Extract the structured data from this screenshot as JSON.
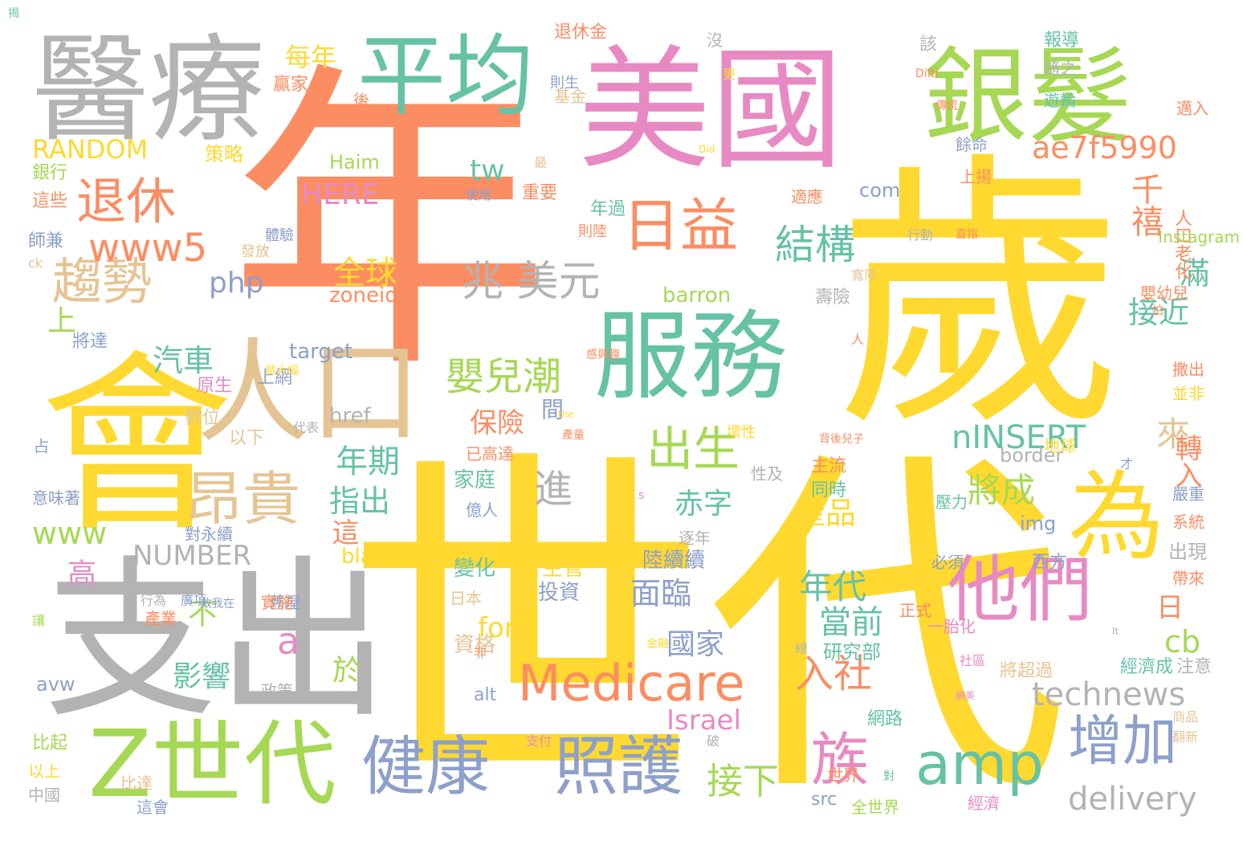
{
  "palette": {
    "orange": "#fc8d62",
    "yellow": "#ffd92f",
    "gray": "#b3b3b3",
    "teal": "#66c2a5",
    "pink": "#e78ac3",
    "green": "#a6d854",
    "blue": "#8da0cb",
    "tan": "#e5c494"
  },
  "words": [
    {
      "text": "年",
      "color": "orange"
    },
    {
      "text": "世代",
      "color": "yellow"
    },
    {
      "text": "歲",
      "color": "yellow"
    },
    {
      "text": "美國",
      "color": "pink"
    },
    {
      "text": "服務",
      "color": "teal"
    },
    {
      "text": "會",
      "color": "yellow"
    },
    {
      "text": "支出",
      "color": "gray"
    },
    {
      "text": "醫療",
      "color": "gray"
    },
    {
      "text": "平均",
      "color": "teal"
    },
    {
      "text": "銀髮",
      "color": "green"
    },
    {
      "text": "人口",
      "color": "tan"
    },
    {
      "text": "Z世代",
      "color": "green"
    },
    {
      "text": "健康",
      "color": "blue"
    },
    {
      "text": "照護",
      "color": "blue"
    },
    {
      "text": "他們",
      "color": "pink"
    },
    {
      "text": "為",
      "color": "yellow"
    },
    {
      "text": "Medicare",
      "color": "orange"
    },
    {
      "text": "amp",
      "color": "teal"
    },
    {
      "text": "增加",
      "color": "blue"
    },
    {
      "text": "退休",
      "color": "orange"
    },
    {
      "text": "趨勢",
      "color": "tan"
    },
    {
      "text": "昂貴",
      "color": "tan"
    },
    {
      "text": "日益",
      "color": "orange"
    },
    {
      "text": "族",
      "color": "pink"
    },
    {
      "text": "出生",
      "color": "green"
    },
    {
      "text": "www5",
      "color": "orange"
    },
    {
      "text": "兆 美元",
      "color": "gray"
    },
    {
      "text": "結構",
      "color": "teal"
    },
    {
      "text": "嬰兒潮",
      "color": "green"
    },
    {
      "text": "ae7f5990",
      "color": "orange"
    },
    {
      "text": "technews",
      "color": "gray"
    },
    {
      "text": "nINSERT",
      "color": "teal"
    },
    {
      "text": "入社",
      "color": "orange"
    },
    {
      "text": "接下",
      "color": "green"
    },
    {
      "text": "delivery",
      "color": "gray"
    },
    {
      "text": "RANDOM",
      "color": "yellow"
    },
    {
      "text": "NUMBER",
      "color": "gray"
    },
    {
      "text": "www",
      "color": "green"
    },
    {
      "text": "php",
      "color": "blue"
    },
    {
      "text": "tw",
      "color": "teal"
    },
    {
      "text": "HERE",
      "color": "pink"
    },
    {
      "text": "千禧",
      "color": "orange"
    },
    {
      "text": "全球",
      "color": "yellow"
    },
    {
      "text": "每年",
      "color": "yellow"
    },
    {
      "text": "將成",
      "color": "green"
    },
    {
      "text": "年代",
      "color": "teal"
    },
    {
      "text": "面臨",
      "color": "blue"
    },
    {
      "text": "國家",
      "color": "blue"
    },
    {
      "text": "當前",
      "color": "teal"
    },
    {
      "text": "產品",
      "color": "yellow"
    },
    {
      "text": "接近",
      "color": "teal"
    },
    {
      "text": "滿",
      "color": "teal"
    },
    {
      "text": "來",
      "color": "tan"
    },
    {
      "text": "轉入",
      "color": "orange"
    },
    {
      "text": "進",
      "color": "gray"
    },
    {
      "text": "赤字",
      "color": "teal"
    },
    {
      "text": "指出",
      "color": "teal"
    },
    {
      "text": "年期",
      "color": "teal"
    },
    {
      "text": "保險",
      "color": "orange"
    },
    {
      "text": "汽車",
      "color": "teal"
    },
    {
      "text": "高",
      "color": "pink"
    },
    {
      "text": "上",
      "color": "green"
    },
    {
      "text": "a",
      "color": "pink"
    },
    {
      "text": "於",
      "color": "green"
    },
    {
      "text": "影響",
      "color": "teal"
    },
    {
      "text": "不",
      "color": "green"
    },
    {
      "text": "這",
      "color": "orange"
    },
    {
      "text": "for",
      "color": "yellow"
    },
    {
      "text": "cb",
      "color": "green"
    },
    {
      "text": "Israel",
      "color": "pink"
    },
    {
      "text": "zoneid",
      "color": "orange"
    },
    {
      "text": "barron",
      "color": "green"
    },
    {
      "text": "target",
      "color": "blue"
    },
    {
      "text": "href",
      "color": "gray"
    },
    {
      "text": "com",
      "color": "blue"
    },
    {
      "text": "border",
      "color": "gray"
    },
    {
      "text": "img",
      "color": "blue"
    },
    {
      "text": "blank",
      "color": "yellow"
    },
    {
      "text": "avw",
      "color": "blue"
    },
    {
      "text": "alt",
      "color": "blue"
    },
    {
      "text": "src",
      "color": "blue"
    },
    {
      "text": "Haim",
      "color": "green"
    },
    {
      "text": "資格",
      "color": "tan"
    },
    {
      "text": "投資",
      "color": "blue"
    },
    {
      "text": "主管",
      "color": "yellow"
    },
    {
      "text": "變化",
      "color": "teal"
    },
    {
      "text": "陸續續",
      "color": "blue"
    },
    {
      "text": "出現",
      "color": "gray"
    },
    {
      "text": "日",
      "color": "orange"
    },
    {
      "text": "間",
      "color": "blue"
    },
    {
      "text": "策略",
      "color": "yellow"
    },
    {
      "text": "退休金",
      "color": "orange"
    },
    {
      "text": "報導",
      "color": "teal"
    },
    {
      "text": "研究部",
      "color": "teal"
    },
    {
      "text": "經濟成",
      "color": "teal"
    },
    {
      "text": "注意",
      "color": "gray"
    },
    {
      "text": "壽險",
      "color": "gray"
    },
    {
      "text": "嬰幼兒",
      "color": "orange"
    },
    {
      "text": "人口老化",
      "color": "orange"
    },
    {
      "text": "主流",
      "color": "orange"
    },
    {
      "text": "同時",
      "color": "teal"
    },
    {
      "text": "家庭",
      "color": "teal"
    },
    {
      "text": "重要",
      "color": "orange"
    },
    {
      "text": "年過",
      "color": "teal"
    },
    {
      "text": "師兼",
      "color": "blue"
    },
    {
      "text": "銀行",
      "color": "green"
    },
    {
      "text": "這些",
      "color": "orange"
    },
    {
      "text": "將達",
      "color": "blue"
    },
    {
      "text": "原生",
      "color": "pink"
    },
    {
      "text": "數位",
      "color": "tan"
    },
    {
      "text": "上網",
      "color": "blue"
    },
    {
      "text": "以下",
      "color": "tan"
    },
    {
      "text": "比起",
      "color": "green"
    },
    {
      "text": "以上",
      "color": "yellow"
    },
    {
      "text": "中國",
      "color": "gray"
    },
    {
      "text": "這會",
      "color": "blue"
    },
    {
      "text": "比達",
      "color": "tan"
    },
    {
      "text": "全世界",
      "color": "green"
    },
    {
      "text": "經濟",
      "color": "pink"
    },
    {
      "text": "世界",
      "color": "orange"
    },
    {
      "text": "網路",
      "color": "teal"
    },
    {
      "text": "將超過",
      "color": "tan"
    },
    {
      "text": "一胎化",
      "color": "pink"
    },
    {
      "text": "正式",
      "color": "orange"
    },
    {
      "text": "必須",
      "color": "blue"
    },
    {
      "text": "西方",
      "color": "blue"
    },
    {
      "text": "地球",
      "color": "yellow"
    },
    {
      "text": "壓力",
      "color": "teal"
    },
    {
      "text": "政策",
      "color": "gray"
    },
    {
      "text": "舊屋",
      "color": "blue"
    },
    {
      "text": "實施",
      "color": "orange"
    },
    {
      "text": "產業",
      "color": "orange"
    },
    {
      "text": "對永續",
      "color": "blue"
    },
    {
      "text": "逐年",
      "color": "gray"
    },
    {
      "text": "日本",
      "color": "tan"
    },
    {
      "text": "已高達",
      "color": "orange"
    },
    {
      "text": "億人",
      "color": "blue"
    },
    {
      "text": "壞性",
      "color": "yellow"
    },
    {
      "text": "適應",
      "color": "orange"
    },
    {
      "text": "則陸",
      "color": "orange"
    },
    {
      "text": "上揚",
      "color": "orange"
    },
    {
      "text": "餘命",
      "color": "blue"
    },
    {
      "text": "隨之",
      "color": "gray"
    },
    {
      "text": "遊輪",
      "color": "teal"
    },
    {
      "text": "則生",
      "color": "blue"
    },
    {
      "text": "基金",
      "color": "tan"
    },
    {
      "text": "贏家",
      "color": "orange"
    },
    {
      "text": "後",
      "color": "orange"
    },
    {
      "text": "該",
      "color": "gray"
    },
    {
      "text": "沒",
      "color": "gray"
    },
    {
      "text": "最",
      "color": "tan"
    },
    {
      "text": "使用",
      "color": "blue"
    },
    {
      "text": "發放",
      "color": "tan"
    },
    {
      "text": "體驗",
      "color": "blue"
    },
    {
      "text": "ck",
      "color": "tan"
    },
    {
      "text": "寬限",
      "color": "tan"
    },
    {
      "text": "行動",
      "color": "gray"
    },
    {
      "text": "直指",
      "color": "orange"
    },
    {
      "text": "Instagram",
      "color": "green"
    },
    {
      "text": "邁入",
      "color": "orange"
    },
    {
      "text": "撒出",
      "color": "orange"
    },
    {
      "text": "並非",
      "color": "yellow"
    },
    {
      "text": "嚴重",
      "color": "blue"
    },
    {
      "text": "系統",
      "color": "orange"
    },
    {
      "text": "帶來",
      "color": "orange"
    },
    {
      "text": "意味著",
      "color": "blue"
    },
    {
      "text": "占",
      "color": "blue"
    },
    {
      "text": "讓",
      "color": "green"
    },
    {
      "text": "故我在",
      "color": "blue"
    },
    {
      "text": "行為",
      "color": "gray"
    },
    {
      "text": "廣項",
      "color": "blue"
    },
    {
      "text": "將大幅",
      "color": "yellow"
    },
    {
      "text": "支付",
      "color": "pink"
    },
    {
      "text": "破",
      "color": "gray"
    },
    {
      "text": "翻新",
      "color": "tan"
    },
    {
      "text": "商品",
      "color": "tan"
    },
    {
      "text": "社區",
      "color": "pink"
    },
    {
      "text": "總",
      "color": "gray"
    },
    {
      "text": "非",
      "color": "orange"
    },
    {
      "text": "s",
      "color": "pink"
    },
    {
      "text": "the",
      "color": "yellow"
    },
    {
      "text": "It",
      "color": "gray"
    },
    {
      "text": "Did",
      "color": "yellow"
    },
    {
      "text": "Difti",
      "color": "orange"
    },
    {
      "text": "傳統",
      "color": "orange"
    },
    {
      "text": "更",
      "color": "yellow"
    },
    {
      "text": "性及",
      "color": "gray"
    },
    {
      "text": "人",
      "color": "orange"
    },
    {
      "text": "拍",
      "color": "orange"
    },
    {
      "text": "代表",
      "color": "gray"
    },
    {
      "text": "才",
      "color": "blue"
    },
    {
      "text": "對",
      "color": "teal"
    },
    {
      "text": "網美",
      "color": "pink"
    },
    {
      "text": "金融",
      "color": "yellow"
    },
    {
      "text": "產量",
      "color": "orange"
    },
    {
      "text": "背後兒子",
      "color": "orange"
    },
    {
      "text": "感興趣",
      "color": "orange"
    },
    {
      "text": "揭",
      "color": "teal"
    }
  ]
}
